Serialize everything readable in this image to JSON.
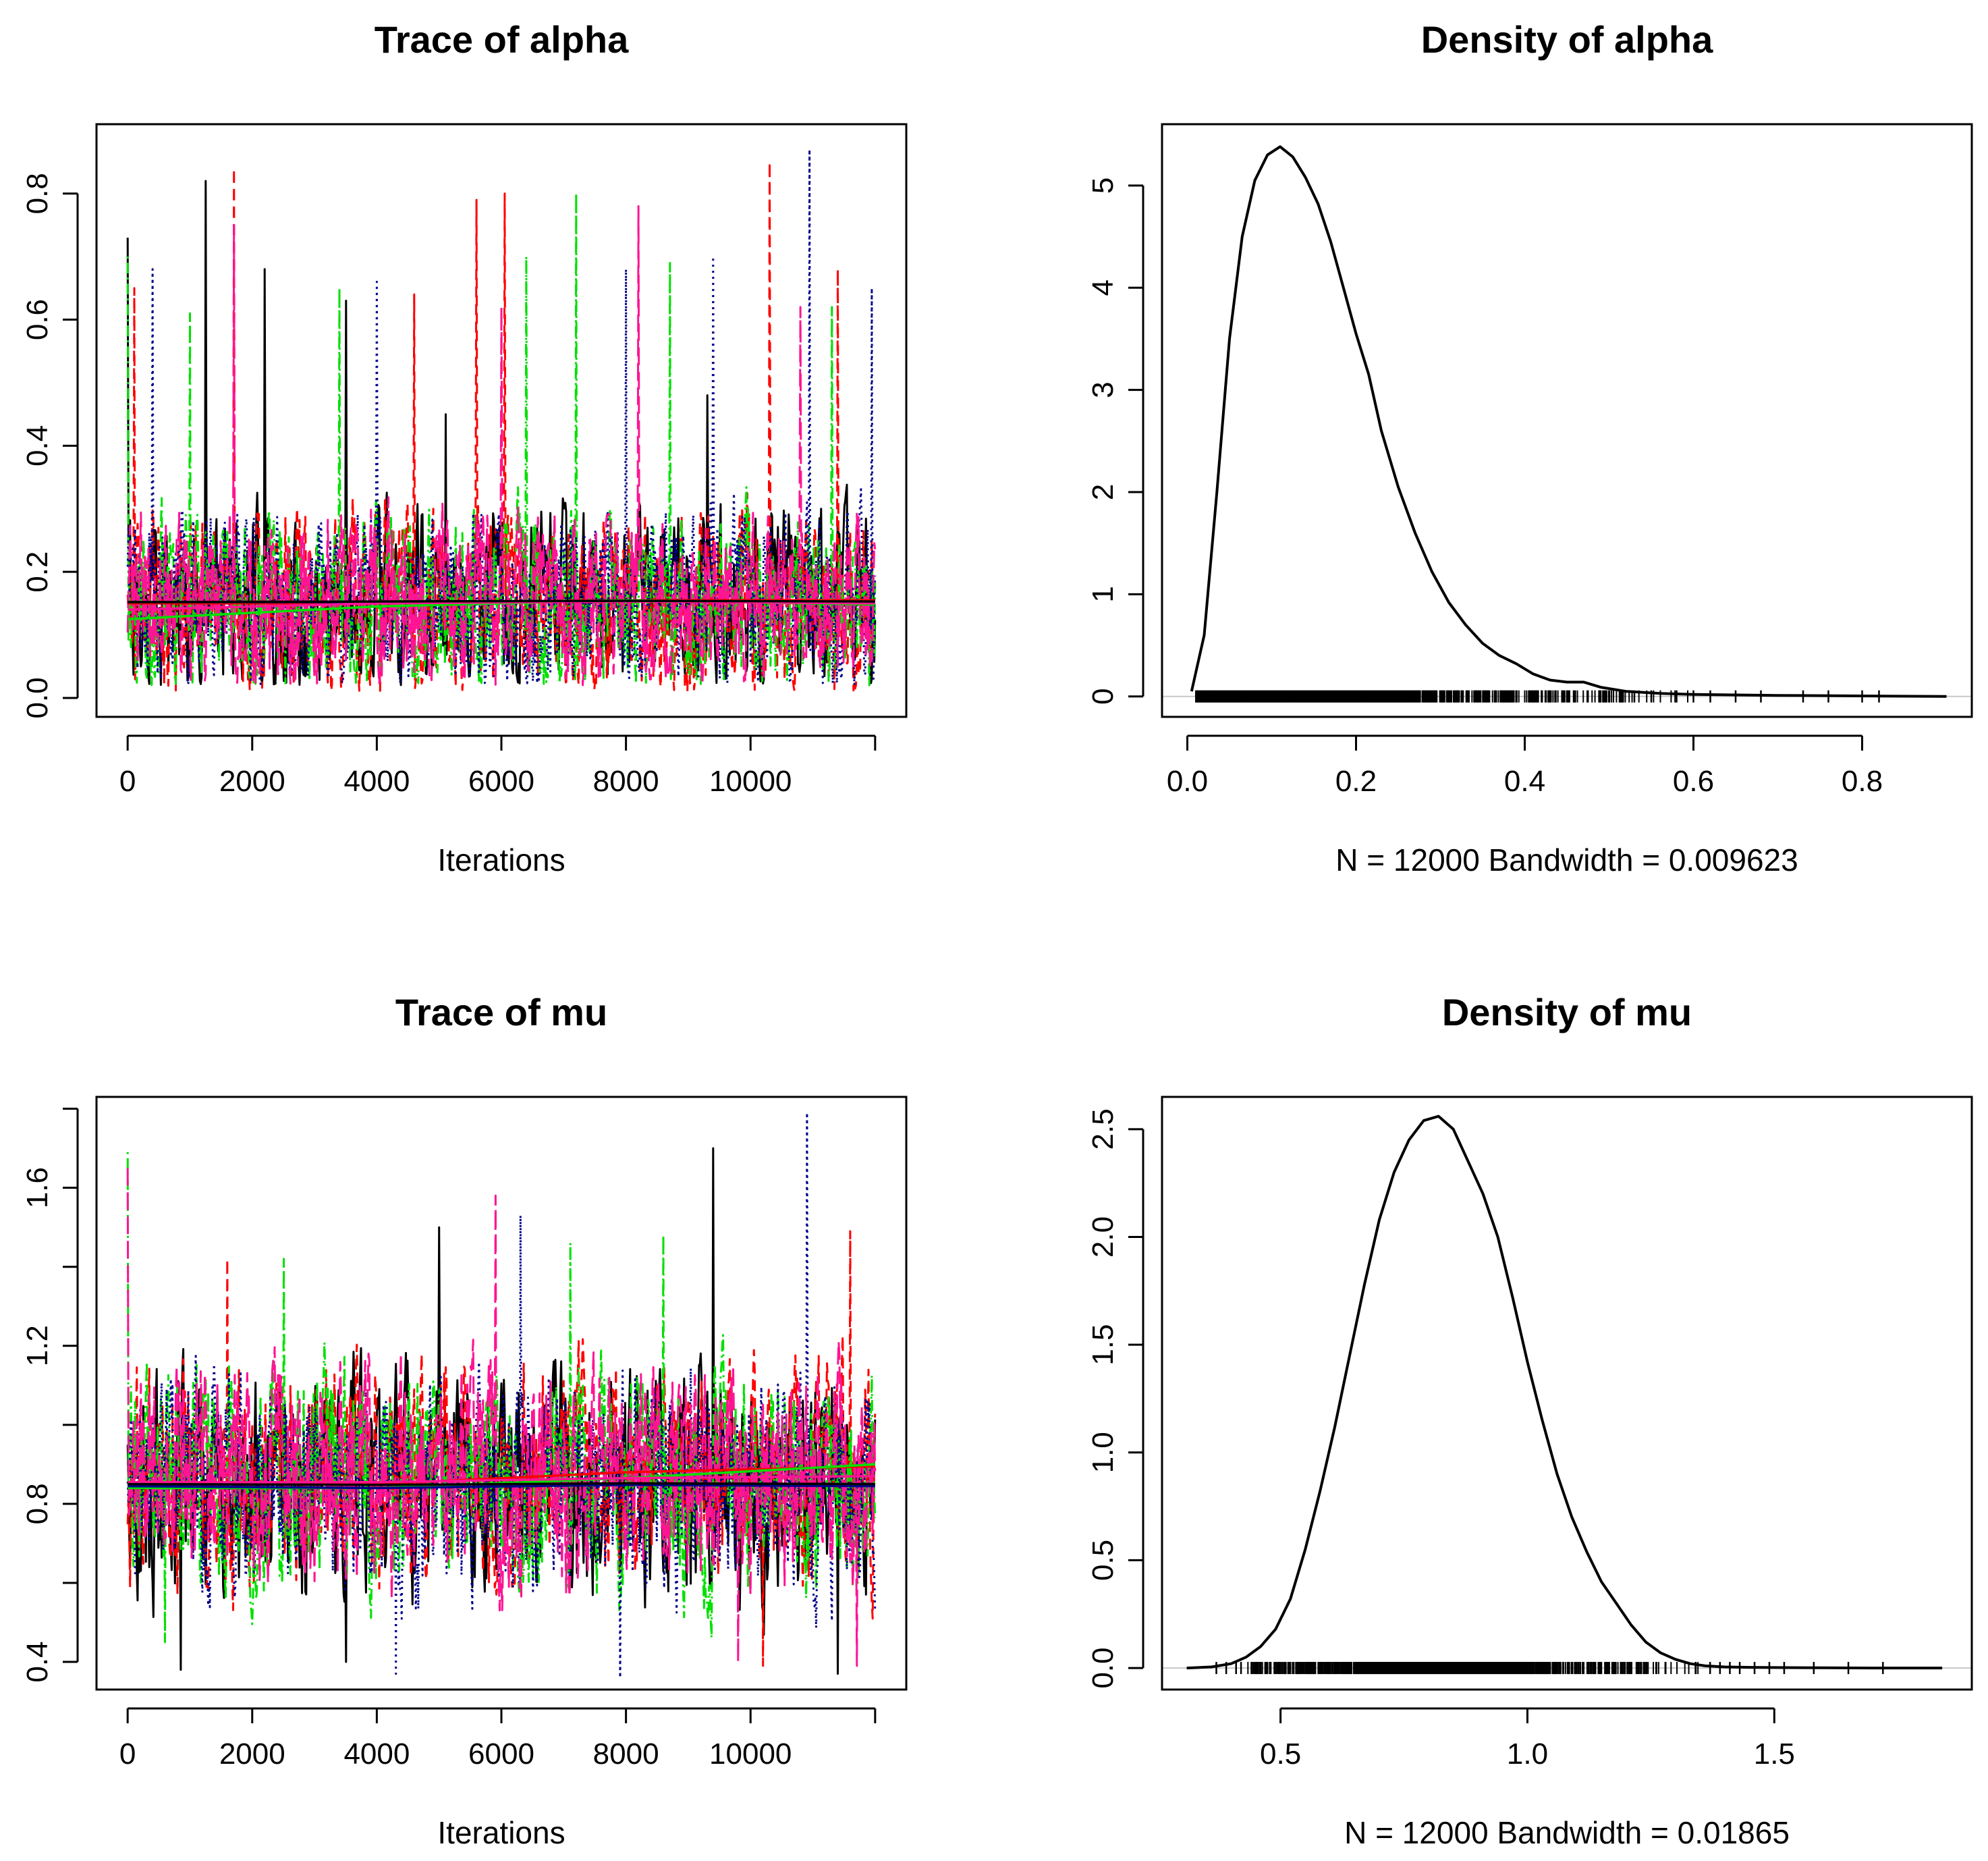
{
  "chart_data": [
    {
      "id": "trace-alpha",
      "type": "line",
      "title": "Trace of alpha",
      "xlabel": "Iterations",
      "ylabel": "",
      "xlim": [
        -500,
        12500
      ],
      "ylim": [
        -0.03,
        0.91
      ],
      "x_ticks": [
        0,
        2000,
        4000,
        6000,
        8000,
        10000
      ],
      "x_tick_labels": [
        "0",
        "2000",
        "4000",
        "6000",
        "8000",
        "10000"
      ],
      "y_ticks": [
        0.0,
        0.2,
        0.4,
        0.6,
        0.8
      ],
      "y_tick_labels": [
        "0.0",
        "0.2",
        "0.4",
        "0.6",
        "0.8"
      ],
      "chains": [
        {
          "color": "#000000",
          "style": "solid",
          "base": 0.15,
          "sd": 0.08,
          "min": 0.02,
          "spikes": [
            [
              0,
              0.73
            ],
            [
              1250,
              0.82
            ],
            [
              2200,
              0.68
            ],
            [
              3500,
              0.63
            ],
            [
              5100,
              0.45
            ],
            [
              9300,
              0.48
            ]
          ]
        },
        {
          "color": "#ff0000",
          "style": "dashed",
          "base": 0.15,
          "sd": 0.08,
          "min": 0.01,
          "spikes": [
            [
              100,
              0.65
            ],
            [
              1700,
              0.84
            ],
            [
              4600,
              0.64
            ],
            [
              5600,
              0.79
            ],
            [
              6050,
              0.8
            ],
            [
              10300,
              0.85
            ],
            [
              11400,
              0.68
            ]
          ]
        },
        {
          "color": "#00e000",
          "style": "dashdot",
          "base": 0.15,
          "sd": 0.08,
          "min": 0.02,
          "spikes": [
            [
              0,
              0.7
            ],
            [
              1000,
              0.61
            ],
            [
              3400,
              0.65
            ],
            [
              6400,
              0.7
            ],
            [
              7200,
              0.8
            ],
            [
              8700,
              0.69
            ],
            [
              11300,
              0.62
            ]
          ]
        },
        {
          "color": "#00008b",
          "style": "dotted",
          "base": 0.15,
          "sd": 0.08,
          "min": 0.02,
          "spikes": [
            [
              400,
              0.68
            ],
            [
              4000,
              0.66
            ],
            [
              8000,
              0.68
            ],
            [
              9400,
              0.7
            ],
            [
              10950,
              0.87
            ],
            [
              11950,
              0.65
            ]
          ]
        },
        {
          "color": "#ff1493",
          "style": "longdash",
          "base": 0.15,
          "sd": 0.08,
          "min": 0.02,
          "spikes": [
            [
              1700,
              0.75
            ],
            [
              6000,
              0.62
            ],
            [
              8200,
              0.78
            ],
            [
              10800,
              0.62
            ]
          ]
        }
      ],
      "smooth_lines": [
        {
          "color": "#ff0000",
          "x": [
            0,
            4000,
            8000,
            12000
          ],
          "y": [
            0.15,
            0.15,
            0.155,
            0.155
          ]
        },
        {
          "color": "#00e000",
          "x": [
            0,
            4000,
            8000,
            12000
          ],
          "y": [
            0.125,
            0.145,
            0.155,
            0.148
          ]
        },
        {
          "color": "#00008b",
          "x": [
            0,
            4000,
            8000,
            12000
          ],
          "y": [
            0.152,
            0.152,
            0.153,
            0.152
          ]
        },
        {
          "color": "#ff1493",
          "x": [
            0,
            4000,
            8000,
            12000
          ],
          "y": [
            0.14,
            0.15,
            0.153,
            0.15
          ]
        },
        {
          "color": "#000000",
          "x": [
            0,
            4000,
            8000,
            12000
          ],
          "y": [
            0.152,
            0.153,
            0.154,
            0.153
          ]
        }
      ]
    },
    {
      "id": "density-alpha",
      "type": "line",
      "title": "Density of alpha",
      "xlabel": "N = 12000   Bandwidth = 0.009623",
      "ylabel": "",
      "xlim": [
        -0.03,
        0.93
      ],
      "ylim": [
        -0.2,
        5.6
      ],
      "x_ticks": [
        0.0,
        0.2,
        0.4,
        0.6,
        0.8
      ],
      "x_tick_labels": [
        "0.0",
        "0.2",
        "0.4",
        "0.6",
        "0.8"
      ],
      "y_ticks": [
        0,
        1,
        2,
        3,
        4,
        5
      ],
      "y_tick_labels": [
        "0",
        "1",
        "2",
        "3",
        "4",
        "5"
      ],
      "x": [
        0.005,
        0.02,
        0.035,
        0.05,
        0.065,
        0.08,
        0.095,
        0.11,
        0.125,
        0.14,
        0.155,
        0.17,
        0.185,
        0.2,
        0.215,
        0.23,
        0.25,
        0.27,
        0.29,
        0.31,
        0.33,
        0.35,
        0.37,
        0.39,
        0.41,
        0.43,
        0.45,
        0.47,
        0.49,
        0.52,
        0.56,
        0.6,
        0.65,
        0.7,
        0.8,
        0.9
      ],
      "y": [
        0.05,
        0.6,
        2.0,
        3.5,
        4.5,
        5.05,
        5.3,
        5.38,
        5.28,
        5.08,
        4.82,
        4.45,
        4.0,
        3.55,
        3.15,
        2.6,
        2.05,
        1.6,
        1.22,
        0.92,
        0.7,
        0.52,
        0.4,
        0.32,
        0.22,
        0.16,
        0.14,
        0.14,
        0.09,
        0.05,
        0.03,
        0.02,
        0.015,
        0.01,
        0.005,
        0.0
      ],
      "rug_range": [
        0.01,
        0.82
      ],
      "rug_outliers": [
        0.49,
        0.53,
        0.55,
        0.58,
        0.6,
        0.62,
        0.65,
        0.68,
        0.73,
        0.76,
        0.8,
        0.82
      ]
    },
    {
      "id": "trace-mu",
      "type": "line",
      "title": "Trace of mu",
      "xlabel": "Iterations",
      "ylabel": "",
      "xlim": [
        -500,
        12500
      ],
      "ylim": [
        0.33,
        1.83
      ],
      "x_ticks": [
        0,
        2000,
        4000,
        6000,
        8000,
        10000
      ],
      "x_tick_labels": [
        "0",
        "2000",
        "4000",
        "6000",
        "8000",
        "10000"
      ],
      "y_ticks": [
        0.4,
        0.8,
        1.2,
        1.6
      ],
      "y_tick_labels": [
        "0.4",
        "0.8",
        "1.2",
        "1.6"
      ],
      "y_minor_ticks": [
        0.6,
        1.0,
        1.4,
        1.8
      ],
      "chains": [
        {
          "color": "#000000",
          "style": "solid",
          "base": 0.85,
          "sd": 0.16,
          "min": 0.37,
          "spikes": [
            [
              850,
              0.38
            ],
            [
              3500,
              0.4
            ],
            [
              5000,
              1.5
            ],
            [
              9400,
              1.7
            ],
            [
              11400,
              0.37
            ]
          ]
        },
        {
          "color": "#ff0000",
          "style": "dashed",
          "base": 0.87,
          "sd": 0.16,
          "min": 0.39,
          "spikes": [
            [
              1600,
              1.42
            ],
            [
              10200,
              0.39
            ],
            [
              11600,
              1.49
            ]
          ]
        },
        {
          "color": "#00e000",
          "style": "dashdot",
          "base": 0.86,
          "sd": 0.16,
          "min": 0.42,
          "spikes": [
            [
              0,
              1.69
            ],
            [
              600,
              0.45
            ],
            [
              2500,
              1.42
            ],
            [
              7100,
              1.46
            ],
            [
              8600,
              1.48
            ]
          ]
        },
        {
          "color": "#00008b",
          "style": "dotted",
          "base": 0.85,
          "sd": 0.16,
          "min": 0.36,
          "spikes": [
            [
              4300,
              0.37
            ],
            [
              6300,
              1.53
            ],
            [
              7900,
              0.36
            ],
            [
              10900,
              1.79
            ]
          ]
        },
        {
          "color": "#ff1493",
          "style": "longdash",
          "base": 0.86,
          "sd": 0.16,
          "min": 0.38,
          "spikes": [
            [
              0,
              1.65
            ],
            [
              5900,
              1.58
            ],
            [
              9800,
              0.4
            ],
            [
              11700,
              0.39
            ]
          ]
        }
      ],
      "smooth_lines": [
        {
          "color": "#ff0000",
          "x": [
            0,
            4000,
            8000,
            12000
          ],
          "y": [
            0.855,
            0.85,
            0.88,
            0.895
          ]
        },
        {
          "color": "#00e000",
          "x": [
            0,
            4000,
            8000,
            12000
          ],
          "y": [
            0.84,
            0.84,
            0.865,
            0.9
          ]
        },
        {
          "color": "#ff1493",
          "x": [
            0,
            4000,
            8000,
            12000
          ],
          "y": [
            0.855,
            0.855,
            0.865,
            0.87
          ]
        },
        {
          "color": "#00008b",
          "x": [
            0,
            4000,
            8000,
            12000
          ],
          "y": [
            0.845,
            0.84,
            0.848,
            0.845
          ]
        },
        {
          "color": "#000000",
          "x": [
            0,
            4000,
            8000,
            12000
          ],
          "y": [
            0.85,
            0.848,
            0.852,
            0.85
          ]
        }
      ]
    },
    {
      "id": "density-mu",
      "type": "line",
      "title": "Density of mu",
      "xlabel": "N = 12000   Bandwidth = 0.01865",
      "ylabel": "",
      "xlim": [
        0.26,
        1.9
      ],
      "ylim": [
        -0.1,
        2.65
      ],
      "x_ticks": [
        0.5,
        1.0,
        1.5
      ],
      "x_tick_labels": [
        "0.5",
        "1.0",
        "1.5"
      ],
      "y_ticks": [
        0.0,
        0.5,
        1.0,
        1.5,
        2.0,
        2.5
      ],
      "y_tick_labels": [
        "0.0",
        "0.5",
        "1.0",
        "1.5",
        "2.0",
        "2.5"
      ],
      "x": [
        0.31,
        0.36,
        0.4,
        0.43,
        0.46,
        0.49,
        0.52,
        0.55,
        0.58,
        0.61,
        0.64,
        0.67,
        0.7,
        0.73,
        0.76,
        0.79,
        0.82,
        0.85,
        0.88,
        0.91,
        0.94,
        0.97,
        1.0,
        1.03,
        1.06,
        1.09,
        1.12,
        1.15,
        1.18,
        1.21,
        1.24,
        1.27,
        1.3,
        1.33,
        1.36,
        1.4,
        1.45,
        1.5,
        1.6,
        1.7,
        1.84
      ],
      "y": [
        0.0,
        0.005,
        0.02,
        0.05,
        0.1,
        0.18,
        0.32,
        0.55,
        0.82,
        1.12,
        1.45,
        1.78,
        2.08,
        2.3,
        2.45,
        2.54,
        2.56,
        2.5,
        2.35,
        2.2,
        2.0,
        1.72,
        1.42,
        1.15,
        0.9,
        0.7,
        0.54,
        0.4,
        0.3,
        0.2,
        0.12,
        0.07,
        0.04,
        0.02,
        0.01,
        0.005,
        0.003,
        0.002,
        0.001,
        0.0,
        0.0
      ],
      "rug_range": [
        0.43,
        1.36
      ],
      "rug_outliers": [
        0.37,
        0.39,
        0.41,
        0.42,
        1.37,
        1.39,
        1.41,
        1.43,
        1.46,
        1.49,
        1.52,
        1.58,
        1.65,
        1.72
      ]
    }
  ]
}
